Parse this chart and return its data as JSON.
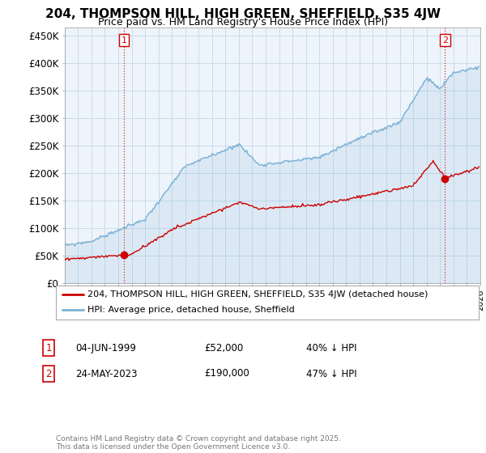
{
  "title1": "204, THOMPSON HILL, HIGH GREEN, SHEFFIELD, S35 4JW",
  "title2": "Price paid vs. HM Land Registry's House Price Index (HPI)",
  "ylabel_ticks": [
    "£0",
    "£50K",
    "£100K",
    "£150K",
    "£200K",
    "£250K",
    "£300K",
    "£350K",
    "£400K",
    "£450K"
  ],
  "ytick_values": [
    0,
    50000,
    100000,
    150000,
    200000,
    250000,
    300000,
    350000,
    400000,
    450000
  ],
  "ylim": [
    0,
    465000
  ],
  "xlim_start": 1995.0,
  "xlim_end": 2026.0,
  "hpi_color": "#7ab0d4",
  "price_color": "#cc0000",
  "point1_year": 1999.42,
  "point1_price": 52000,
  "point2_year": 2023.38,
  "point2_price": 190000,
  "legend_line1": "204, THOMPSON HILL, HIGH GREEN, SHEFFIELD, S35 4JW (detached house)",
  "legend_line2": "HPI: Average price, detached house, Sheffield",
  "note1_label": "1",
  "note1_date": "04-JUN-1999",
  "note1_price": "£52,000",
  "note1_hpi": "40% ↓ HPI",
  "note2_label": "2",
  "note2_date": "24-MAY-2023",
  "note2_price": "£190,000",
  "note2_hpi": "47% ↓ HPI",
  "copyright": "Contains HM Land Registry data © Crown copyright and database right 2025.\nThis data is licensed under the Open Government Licence v3.0.",
  "bg_color": "#eef4fb",
  "grid_color": "#c8dcea",
  "title_fontsize": 11,
  "subtitle_fontsize": 9
}
